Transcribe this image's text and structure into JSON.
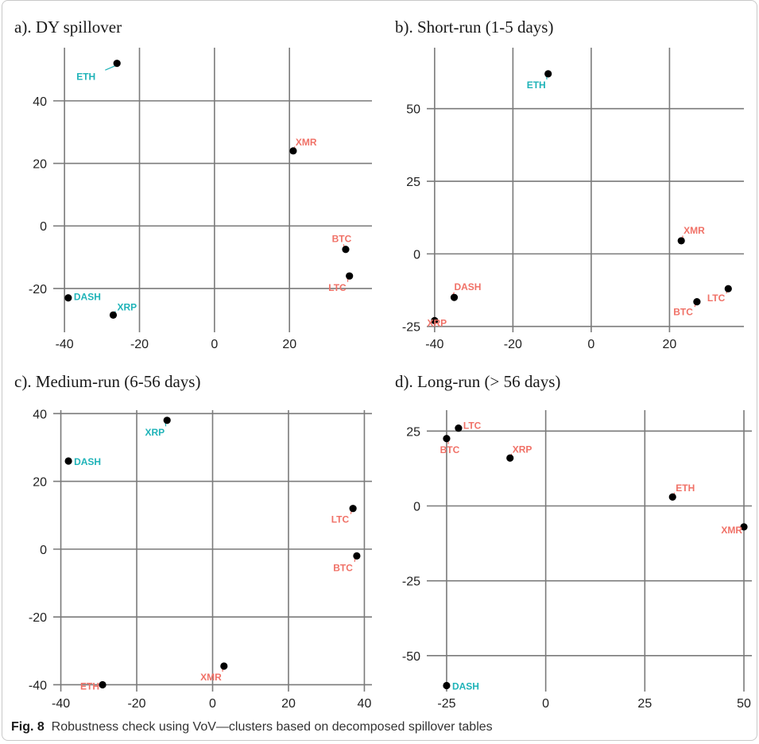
{
  "colors": {
    "teal": "#1fb3b8",
    "salmon": "#f07167",
    "grid": "#7a7a7a",
    "point": "#000000"
  },
  "caption": {
    "label": "Fig. 8",
    "text": "Robustness check using VoV—clusters based on decomposed spillover tables"
  },
  "chart_data": [
    {
      "type": "scatter",
      "title": "a). DY spillover",
      "xlim": [
        -43,
        42
      ],
      "ylim": [
        -34,
        57
      ],
      "xticks": [
        -40,
        -20,
        0,
        20
      ],
      "yticks": [
        -20,
        0,
        20,
        40
      ],
      "grid": true,
      "points": [
        {
          "label": "ETH",
          "x": -26,
          "y": 52,
          "color": "teal"
        },
        {
          "label": "XMR",
          "x": 21,
          "y": 24,
          "color": "salmon"
        },
        {
          "label": "BTC",
          "x": 35,
          "y": -7.5,
          "color": "salmon"
        },
        {
          "label": "LTC",
          "x": 36,
          "y": -16,
          "color": "salmon"
        },
        {
          "label": "DASH",
          "x": -39,
          "y": -23,
          "color": "teal"
        },
        {
          "label": "XRP",
          "x": -27,
          "y": -28.5,
          "color": "teal"
        }
      ]
    },
    {
      "type": "scatter",
      "title": "b). Short-run (1-5 days)",
      "xlim": [
        -42,
        39
      ],
      "ylim": [
        -27,
        71
      ],
      "xticks": [
        -40,
        -20,
        0,
        20
      ],
      "yticks": [
        -25,
        0,
        25,
        50
      ],
      "grid": true,
      "points": [
        {
          "label": "ETH",
          "x": -11,
          "y": 62,
          "color": "teal"
        },
        {
          "label": "XMR",
          "x": 23,
          "y": 4.5,
          "color": "salmon"
        },
        {
          "label": "DASH",
          "x": -35,
          "y": -15,
          "color": "salmon"
        },
        {
          "label": "XRP",
          "x": -40,
          "y": -23,
          "color": "salmon"
        },
        {
          "label": "BTC",
          "x": 27,
          "y": -16.5,
          "color": "salmon"
        },
        {
          "label": "LTC",
          "x": 35,
          "y": -12,
          "color": "salmon"
        }
      ]
    },
    {
      "type": "scatter",
      "title": "c). Medium-run (6-56 days)",
      "xlim": [
        -42,
        42
      ],
      "ylim": [
        -42,
        41
      ],
      "xticks": [
        -40,
        -20,
        0,
        20,
        40
      ],
      "yticks": [
        -40,
        -20,
        0,
        20,
        40
      ],
      "grid": true,
      "points": [
        {
          "label": "XRP",
          "x": -12,
          "y": 38,
          "color": "teal"
        },
        {
          "label": "DASH",
          "x": -38,
          "y": 26,
          "color": "teal"
        },
        {
          "label": "LTC",
          "x": 37,
          "y": 12,
          "color": "salmon"
        },
        {
          "label": "BTC",
          "x": 38,
          "y": -2,
          "color": "salmon"
        },
        {
          "label": "XMR",
          "x": 3,
          "y": -34.5,
          "color": "salmon"
        },
        {
          "label": "ETH",
          "x": -29,
          "y": -40,
          "color": "salmon"
        }
      ]
    },
    {
      "type": "scatter",
      "title": "d). Long-run (> 56 days)",
      "xlim": [
        -30,
        52
      ],
      "ylim": [
        -62,
        32
      ],
      "xticks": [
        -25,
        0,
        25,
        50
      ],
      "yticks": [
        -50,
        -25,
        0,
        25
      ],
      "grid": true,
      "points": [
        {
          "label": "LTC",
          "x": -22,
          "y": 26,
          "color": "salmon"
        },
        {
          "label": "BTC",
          "x": -25,
          "y": 22.5,
          "color": "salmon"
        },
        {
          "label": "XRP",
          "x": -9,
          "y": 16,
          "color": "salmon"
        },
        {
          "label": "ETH",
          "x": 32,
          "y": 3,
          "color": "salmon"
        },
        {
          "label": "XMR",
          "x": 50,
          "y": -7,
          "color": "salmon"
        },
        {
          "label": "DASH",
          "x": -25,
          "y": -60,
          "color": "teal"
        }
      ]
    }
  ]
}
